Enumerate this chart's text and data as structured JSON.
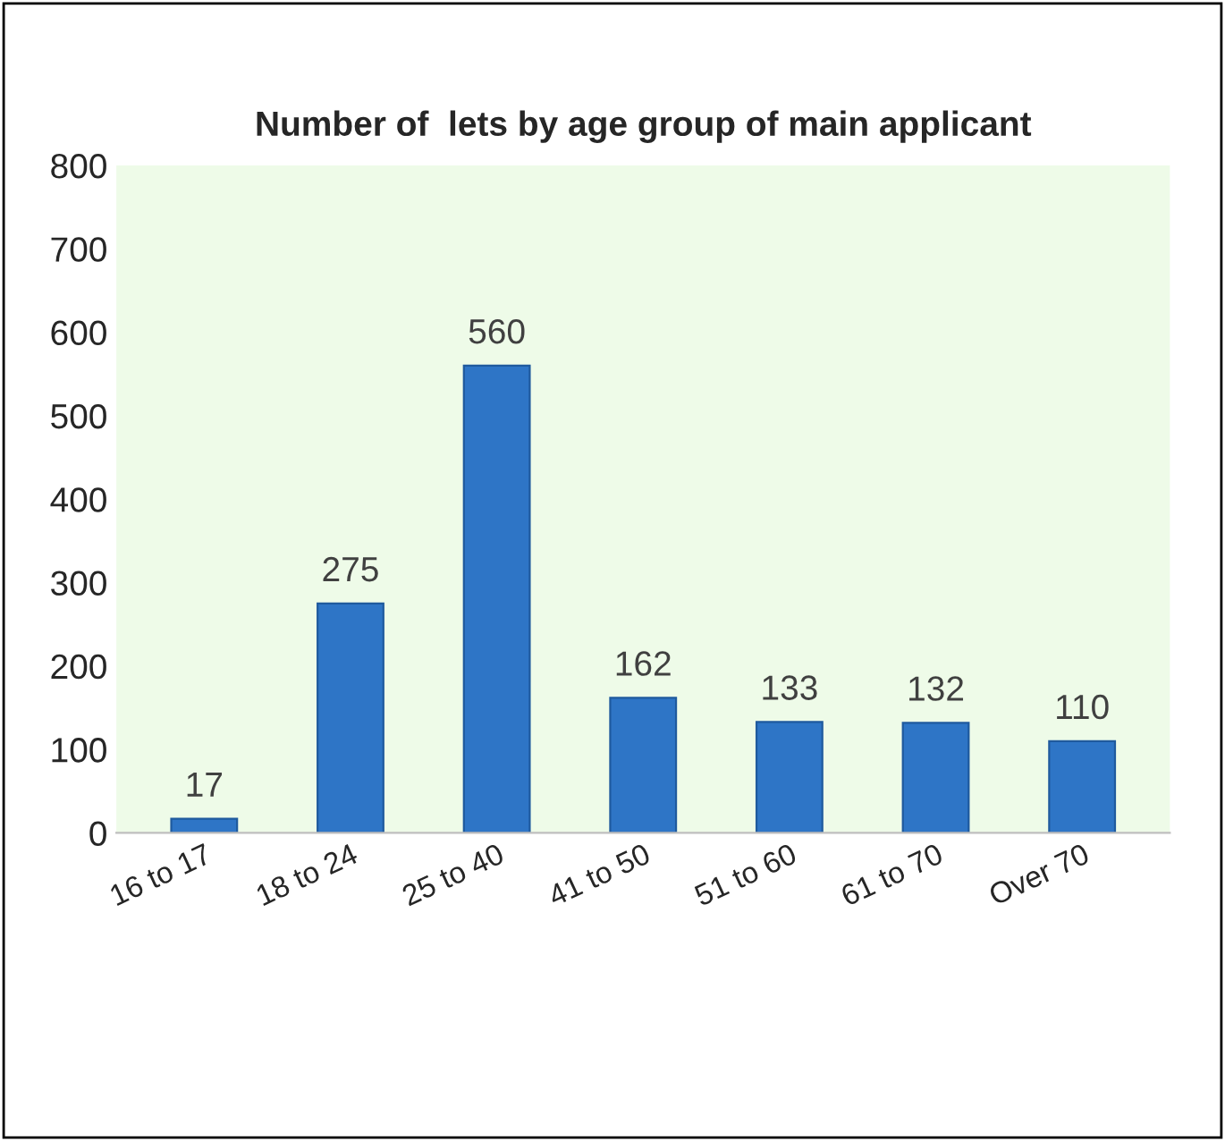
{
  "chart_data": {
    "type": "bar",
    "title": "Number of  lets by age group of main applicant",
    "categories": [
      "16 to 17",
      "18 to 24",
      "25 to 40",
      "41 to 50",
      "51 to 60",
      "61 to 70",
      "Over 70"
    ],
    "values": [
      17,
      275,
      560,
      162,
      133,
      132,
      110
    ],
    "color": "#2e75c6",
    "ylim": [
      0,
      800
    ],
    "yticks": [
      0,
      100,
      200,
      300,
      400,
      500,
      600,
      700,
      800
    ],
    "grid": false,
    "data_labels": true
  }
}
